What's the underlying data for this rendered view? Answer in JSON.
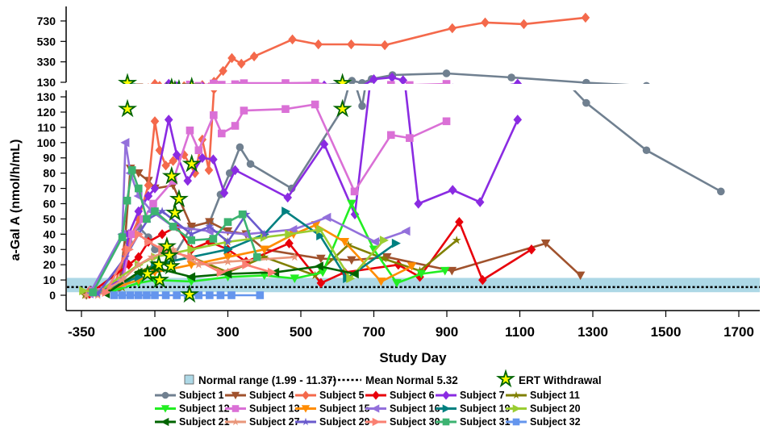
{
  "chart_data": {
    "type": "line",
    "xlabel": "Study Day",
    "ylabel": "a-Gal A (nmol/h/mL)",
    "x_ticks": [
      -350,
      100,
      300,
      500,
      700,
      900,
      1100,
      1300,
      1500,
      1700
    ],
    "xlim": [
      -350,
      1740
    ],
    "x_axis_note": "pre-treatment segment (-350 to 100) compressed",
    "y_lower_ticks": [
      0,
      10,
      20,
      30,
      40,
      50,
      60,
      70,
      80,
      90,
      100,
      110,
      120,
      130
    ],
    "y_lower_range": [
      0,
      130
    ],
    "y_upper_ticks": [
      130,
      330,
      530,
      730
    ],
    "y_upper_range": [
      130,
      860
    ],
    "broken_y_axis": true,
    "grid": false,
    "legend_placement": "bottom",
    "normal_range": {
      "label": "Normal range (1.99 - 11.37)",
      "low": 1.99,
      "high": 11.37,
      "color": "#add8e6"
    },
    "mean_normal": {
      "label": "Mean Normal 5.32",
      "value": 5.32
    },
    "ert_withdrawal": {
      "label": "ERT Withdrawal",
      "points": [
        [
          -68,
          122
        ],
        [
          201,
          86
        ],
        [
          146,
          78
        ],
        [
          166,
          63
        ],
        [
          155,
          54
        ],
        [
          133,
          32
        ],
        [
          140,
          26
        ],
        [
          111,
          20
        ],
        [
          144,
          19
        ],
        [
          55,
          14
        ],
        [
          113,
          10
        ],
        [
          195,
          0.5
        ],
        [
          614,
          122
        ]
      ]
    },
    "series": [
      {
        "name": "Subject 1",
        "color": "#708090",
        "marker": "circle",
        "points": [
          [
            -250,
            2
          ],
          [
            -120,
            5
          ],
          [
            -60,
            35
          ],
          [
            0,
            45
          ],
          [
            60,
            38
          ],
          [
            100,
            30
          ],
          [
            150,
            25
          ],
          [
            200,
            45
          ],
          [
            250,
            48
          ],
          [
            280,
            66
          ],
          [
            305,
            80
          ],
          [
            333,
            97
          ],
          [
            362,
            86
          ],
          [
            475,
            70
          ],
          [
            614,
            122
          ],
          [
            640,
            145
          ],
          [
            668,
            124
          ],
          [
            694,
            162
          ],
          [
            751,
            201
          ],
          [
            899,
            217
          ],
          [
            1077,
            177
          ],
          [
            1282,
            126
          ],
          [
            1447,
            95
          ],
          [
            1651,
            68
          ]
        ]
      },
      {
        "name": "Subject 4",
        "color": "#a0522d",
        "marker": "down",
        "points": [
          [
            -320,
            0
          ],
          [
            -120,
            5
          ],
          [
            -80,
            40
          ],
          [
            -50,
            83
          ],
          [
            0,
            80
          ],
          [
            60,
            75
          ],
          [
            100,
            70
          ],
          [
            150,
            72
          ],
          [
            200,
            45
          ],
          [
            250,
            48
          ],
          [
            300,
            42
          ],
          [
            350,
            40
          ],
          [
            400,
            30
          ],
          [
            555,
            24
          ],
          [
            639,
            23
          ],
          [
            736,
            25
          ],
          [
            914,
            16
          ],
          [
            1171,
            34
          ],
          [
            1266,
            13
          ]
        ]
      },
      {
        "name": "Subject 5",
        "color": "#f4694b",
        "marker": "diamond",
        "points": [
          [
            -300,
            3
          ],
          [
            -150,
            5
          ],
          [
            -80,
            30
          ],
          [
            0,
            50
          ],
          [
            60,
            72
          ],
          [
            100,
            114
          ],
          [
            113,
            95
          ],
          [
            130,
            85
          ],
          [
            150,
            88
          ],
          [
            180,
            92
          ],
          [
            210,
            80
          ],
          [
            230,
            102
          ],
          [
            248,
            82
          ],
          [
            262,
            135
          ],
          [
            287,
            241
          ],
          [
            311,
            367
          ],
          [
            337,
            312
          ],
          [
            372,
            383
          ],
          [
            477,
            549
          ],
          [
            548,
            501
          ],
          [
            638,
            501
          ],
          [
            730,
            493
          ],
          [
            915,
            659
          ],
          [
            1005,
            715
          ],
          [
            1111,
            699
          ],
          [
            1280,
            762
          ]
        ]
      },
      {
        "name": "Subject 6",
        "color": "#e8000b",
        "marker": "diamond",
        "points": [
          [
            -300,
            1
          ],
          [
            -60,
            20
          ],
          [
            0,
            25
          ],
          [
            60,
            35
          ],
          [
            120,
            40
          ],
          [
            160,
            45
          ],
          [
            200,
            30
          ],
          [
            250,
            35
          ],
          [
            300,
            30
          ],
          [
            350,
            22
          ],
          [
            468,
            34
          ],
          [
            555,
            8
          ],
          [
            620,
            15
          ],
          [
            767,
            20
          ],
          [
            826,
            12
          ],
          [
            934,
            48
          ],
          [
            998,
            10
          ],
          [
            1132,
            30
          ]
        ]
      },
      {
        "name": "Subject 7",
        "color": "#8a2be2",
        "marker": "diamond",
        "points": [
          [
            -280,
            2
          ],
          [
            -100,
            10
          ],
          [
            -60,
            40
          ],
          [
            0,
            55
          ],
          [
            60,
            65
          ],
          [
            100,
            70
          ],
          [
            138,
            115
          ],
          [
            160,
            92
          ],
          [
            190,
            75
          ],
          [
            230,
            90
          ],
          [
            260,
            89
          ],
          [
            290,
            67
          ],
          [
            320,
            82
          ],
          [
            464,
            64
          ],
          [
            564,
            99
          ],
          [
            648,
            53
          ],
          [
            700,
            160
          ],
          [
            750,
            177
          ],
          [
            780,
            150
          ],
          [
            822,
            60
          ],
          [
            916,
            69
          ],
          [
            991,
            61
          ],
          [
            1094,
            115
          ]
        ]
      },
      {
        "name": "Subject 11",
        "color": "#808000",
        "marker": "star",
        "points": [
          [
            -330,
            0
          ],
          [
            -250,
            2
          ],
          [
            -100,
            5
          ],
          [
            0,
            15
          ],
          [
            100,
            20
          ],
          [
            200,
            25
          ],
          [
            300,
            15
          ],
          [
            400,
            25
          ],
          [
            539,
            13
          ],
          [
            630,
            33
          ],
          [
            727,
            24
          ],
          [
            826,
            16
          ],
          [
            927,
            36
          ]
        ]
      },
      {
        "name": "Subject 12",
        "color": "#22ee22",
        "marker": "down",
        "points": [
          [
            -150,
            3
          ],
          [
            0,
            8
          ],
          [
            100,
            10
          ],
          [
            200,
            9
          ],
          [
            300,
            12
          ],
          [
            400,
            13
          ],
          [
            483,
            11
          ],
          [
            560,
            15
          ],
          [
            639,
            60
          ],
          [
            700,
            30
          ],
          [
            763,
            8
          ],
          [
            830,
            14
          ],
          [
            895,
            16
          ]
        ]
      },
      {
        "name": "Subject 13",
        "color": "#da70d6",
        "marker": "square",
        "points": [
          [
            -280,
            3
          ],
          [
            -100,
            8
          ],
          [
            -40,
            40
          ],
          [
            30,
            50
          ],
          [
            90,
            60
          ],
          [
            150,
            75
          ],
          [
            196,
            108
          ],
          [
            220,
            95
          ],
          [
            261,
            118
          ],
          [
            283,
            106
          ],
          [
            320,
            111
          ],
          [
            344,
            121
          ],
          [
            458,
            122
          ],
          [
            539,
            125
          ],
          [
            647,
            68
          ],
          [
            747,
            105
          ],
          [
            798,
            103
          ],
          [
            899,
            114
          ]
        ]
      },
      {
        "name": "Subject 15",
        "color": "#ff8c00",
        "marker": "down",
        "points": [
          [
            -200,
            3
          ],
          [
            0,
            10
          ],
          [
            100,
            15
          ],
          [
            200,
            20
          ],
          [
            300,
            25
          ],
          [
            400,
            30
          ],
          [
            480,
            40
          ],
          [
            541,
            46
          ],
          [
            620,
            35
          ],
          [
            720,
            9
          ],
          [
            804,
            19
          ]
        ]
      },
      {
        "name": "Subject 16",
        "color": "#9370db",
        "marker": "left",
        "points": [
          [
            -300,
            1
          ],
          [
            -100,
            40
          ],
          [
            -80,
            100
          ],
          [
            -50,
            80
          ],
          [
            0,
            65
          ],
          [
            80,
            55
          ],
          [
            150,
            45
          ],
          [
            250,
            42
          ],
          [
            350,
            40
          ],
          [
            479,
            43
          ],
          [
            572,
            51
          ],
          [
            704,
            35
          ],
          [
            789,
            42
          ]
        ]
      },
      {
        "name": "Subject 19",
        "color": "#008080",
        "marker": "right",
        "points": [
          [
            -250,
            2
          ],
          [
            0,
            12
          ],
          [
            100,
            20
          ],
          [
            200,
            25
          ],
          [
            300,
            30
          ],
          [
            400,
            40
          ],
          [
            458,
            55
          ],
          [
            553,
            39
          ],
          [
            626,
            11
          ],
          [
            760,
            34
          ]
        ]
      },
      {
        "name": "Subject 20",
        "color": "#9acd32",
        "marker": "right",
        "points": [
          [
            -340,
            3
          ],
          [
            -250,
            2
          ],
          [
            0,
            20
          ],
          [
            100,
            25
          ],
          [
            200,
            30
          ],
          [
            300,
            35
          ],
          [
            400,
            38
          ],
          [
            467,
            40
          ],
          [
            553,
            43
          ],
          [
            635,
            11
          ],
          [
            727,
            36
          ]
        ]
      },
      {
        "name": "Subject 21",
        "color": "#006400",
        "marker": "left",
        "points": [
          [
            -200,
            1
          ],
          [
            0,
            15
          ],
          [
            100,
            18
          ],
          [
            200,
            12
          ],
          [
            300,
            14
          ],
          [
            430,
            15
          ],
          [
            551,
            19
          ],
          [
            648,
            14
          ]
        ]
      },
      {
        "name": "Subject 27",
        "color": "#e9967a",
        "marker": "star",
        "points": [
          [
            -320,
            0
          ],
          [
            -250,
            0
          ],
          [
            -100,
            10
          ],
          [
            0,
            20
          ],
          [
            80,
            25
          ],
          [
            150,
            30
          ],
          [
            220,
            20
          ],
          [
            300,
            22
          ],
          [
            483,
            25
          ]
        ]
      },
      {
        "name": "Subject 29",
        "color": "#6a5acd",
        "marker": "star",
        "points": [
          [
            -250,
            1
          ],
          [
            -80,
            25
          ],
          [
            0,
            40
          ],
          [
            60,
            50
          ],
          [
            120,
            55
          ],
          [
            200,
            40
          ],
          [
            250,
            45
          ],
          [
            300,
            35
          ],
          [
            350,
            53
          ],
          [
            400,
            40
          ]
        ]
      },
      {
        "name": "Subject 30",
        "color": "#fa8072",
        "marker": "right",
        "points": [
          [
            -200,
            2
          ],
          [
            -60,
            30
          ],
          [
            0,
            40
          ],
          [
            60,
            35
          ],
          [
            120,
            30
          ],
          [
            200,
            25
          ],
          [
            280,
            15
          ],
          [
            350,
            20
          ],
          [
            420,
            15
          ]
        ]
      },
      {
        "name": "Subject 31",
        "color": "#3cb371",
        "marker": "square",
        "points": [
          [
            -280,
            2
          ],
          [
            -100,
            38
          ],
          [
            -70,
            62
          ],
          [
            -40,
            82
          ],
          [
            0,
            70
          ],
          [
            50,
            50
          ],
          [
            100,
            55
          ],
          [
            150,
            45
          ],
          [
            200,
            36
          ],
          [
            260,
            37
          ],
          [
            300,
            48
          ],
          [
            340,
            53
          ],
          [
            380,
            25
          ]
        ]
      },
      {
        "name": "Subject 32",
        "color": "#6495ed",
        "marker": "square",
        "points": [
          [
            -150,
            0
          ],
          [
            -100,
            0
          ],
          [
            -50,
            0
          ],
          [
            0,
            0
          ],
          [
            50,
            0
          ],
          [
            100,
            0
          ],
          [
            130,
            0
          ],
          [
            160,
            0
          ],
          [
            190,
            0
          ],
          [
            220,
            0
          ],
          [
            250,
            0
          ],
          [
            280,
            0
          ],
          [
            310,
            0
          ],
          [
            388,
            0
          ]
        ]
      }
    ]
  }
}
